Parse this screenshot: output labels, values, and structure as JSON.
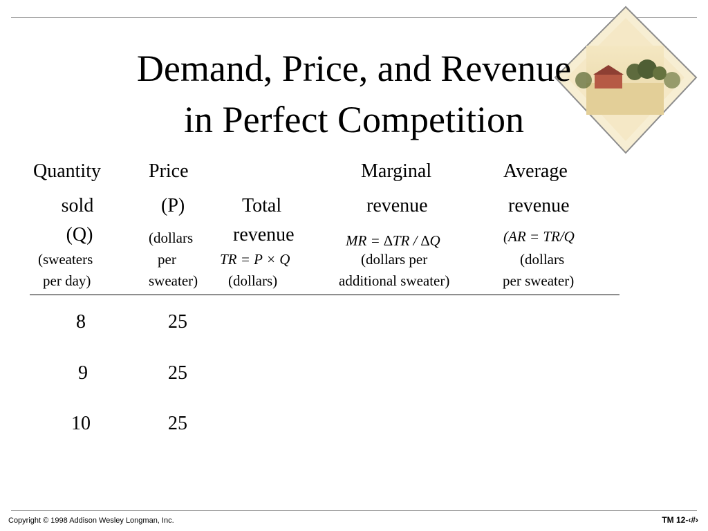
{
  "title": {
    "line1": "Demand, Price, and Revenue",
    "line2": "in Perfect Competition"
  },
  "columns": {
    "quantity": {
      "line1": "Quantity",
      "line2": "sold",
      "line3": "(Q)",
      "line4": "(sweaters",
      "line5": "per day)"
    },
    "price": {
      "line1": "Price",
      "line2": "(P)",
      "line3": "(dollars",
      "line4": "per",
      "line5": "sweater)"
    },
    "total_revenue": {
      "line1": "Total",
      "line2": "revenue",
      "formula": "TR = P × Q",
      "unit": "(dollars)"
    },
    "marginal_revenue": {
      "line1": "Marginal",
      "line2": "revenue",
      "formula": "MR = ∆TR / ∆Q",
      "unit1": "(dollars per",
      "unit2": "additional sweater)"
    },
    "average_revenue": {
      "line1": "Average",
      "line2": "revenue",
      "formula": "(AR = TR/Q",
      "unit1": "(dollars",
      "unit2": "per sweater)"
    }
  },
  "rows": [
    {
      "quantity": "8",
      "price": "25"
    },
    {
      "quantity": "9",
      "price": "25"
    },
    {
      "quantity": "10",
      "price": "25"
    }
  ],
  "footer": {
    "copyright": "Copyright © 1998 Addison Wesley Longman, Inc.",
    "slide_number": "TM 12-‹#›"
  }
}
